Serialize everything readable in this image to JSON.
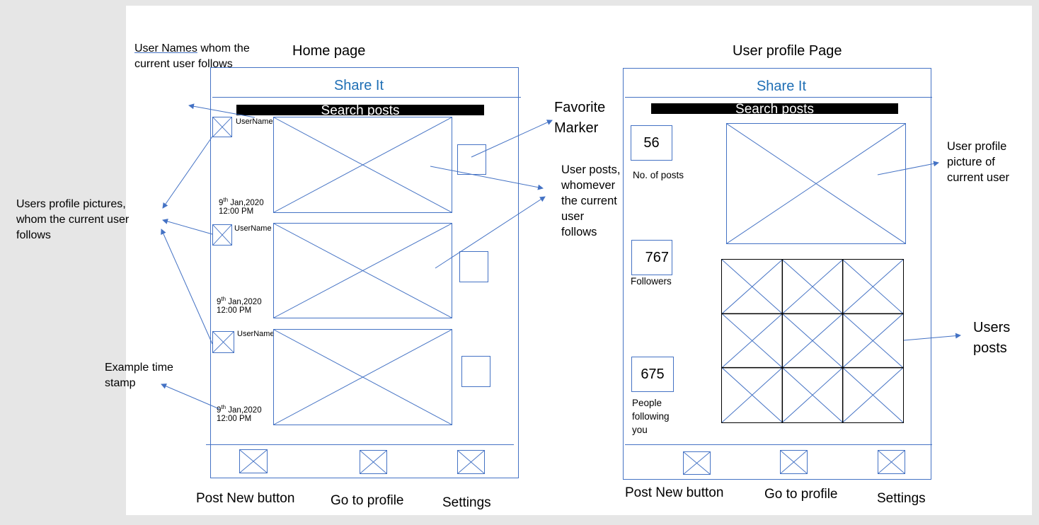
{
  "home": {
    "page_title": "Home page",
    "app_name": "Share It",
    "search_label": "Search posts",
    "posts": [
      {
        "username": "UserName",
        "date_day": "9",
        "date_sup": "th",
        "date_rest": " Jan,2020",
        "time": "12:00 PM"
      },
      {
        "username": "UserName",
        "date_day": "9",
        "date_sup": "th",
        "date_rest": " Jan,2020",
        "time": "12:00 PM"
      },
      {
        "username": "UserName",
        "date_day": "9",
        "date_sup": "th",
        "date_rest": " Jan,2020",
        "time": "12:00 PM"
      }
    ],
    "bottom_labels": {
      "post_new": "Post New button",
      "profile": "Go to profile",
      "settings": "Settings"
    }
  },
  "profile": {
    "page_title": "User profile Page",
    "app_name": "Share It",
    "search_label": "Search posts",
    "stats": [
      {
        "value": "56",
        "label": "No. of posts"
      },
      {
        "value": "767",
        "label": "Followers"
      },
      {
        "value": "675",
        "label_lines": [
          "People",
          "following",
          "you"
        ]
      }
    ],
    "bottom_labels": {
      "post_new": "Post New button",
      "profile": "Go to profile",
      "settings": "Settings"
    }
  },
  "annotations": {
    "usernames_underlined": "User Names",
    "usernames_rest": " whom the",
    "usernames_line2": "current user follows",
    "profile_pics": [
      "Users profile pictures,",
      "whom the current user",
      "follows"
    ],
    "timestamp": [
      "Example time",
      "stamp"
    ],
    "favorite": [
      "Favorite",
      "Marker"
    ],
    "user_posts": [
      "User posts,",
      "whomever",
      "the current",
      "user",
      "follows"
    ],
    "profile_picture": [
      "User profile",
      "picture of",
      "current user"
    ],
    "users_posts": [
      "Users",
      "posts"
    ]
  },
  "colors": {
    "accent": "#4472c4",
    "title": "#1f6fb5",
    "search_bg": "#000000"
  }
}
